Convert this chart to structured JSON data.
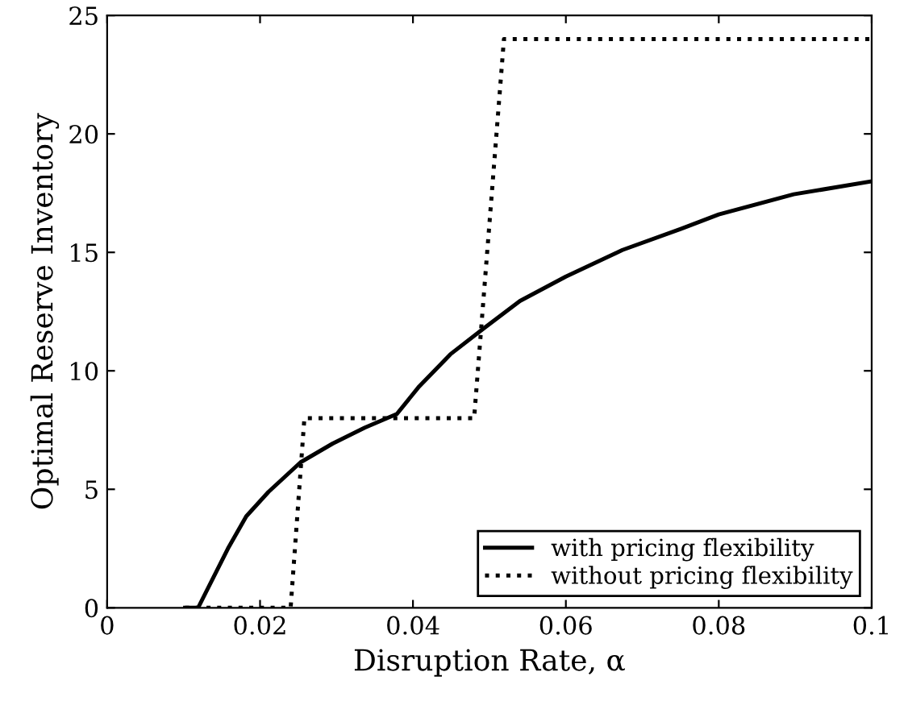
{
  "chart_data": {
    "type": "line",
    "xlabel": "Disruption Rate, α",
    "ylabel": "Optimal Reserve Inventory",
    "xlim": [
      0,
      0.1
    ],
    "xticks": [
      0,
      0.02,
      0.04,
      0.06,
      0.08,
      0.1
    ],
    "ylim": [
      0,
      25
    ],
    "yticks": [
      0,
      5,
      10,
      15,
      20,
      25
    ],
    "grid": false,
    "legend": "bottom right",
    "marker": "none",
    "series": [
      {
        "name": "with pricing flexibility",
        "color": "#000000",
        "line_style": "solid",
        "x": [
          0.0102,
          0.0119,
          0.0158,
          0.0182,
          0.0211,
          0.0253,
          0.0295,
          0.0337,
          0.0379,
          0.0407,
          0.0449,
          0.0493,
          0.054,
          0.06,
          0.0674,
          0.0751,
          0.08,
          0.0898,
          0.1
        ],
        "values": [
          0,
          0,
          2.5,
          3.86,
          4.89,
          6.14,
          6.93,
          7.6,
          8.18,
          9.3,
          10.7,
          11.8,
          12.95,
          13.98,
          15.1,
          16.0,
          16.6,
          17.45,
          18.0
        ]
      },
      {
        "name": "without pricing flexibility",
        "color": "#000000",
        "line_style": "dotted",
        "x": [
          0.0102,
          0.024,
          0.0258,
          0.048,
          0.0519,
          0.1
        ],
        "values": [
          0,
          0,
          8,
          8,
          24,
          24
        ]
      }
    ]
  }
}
